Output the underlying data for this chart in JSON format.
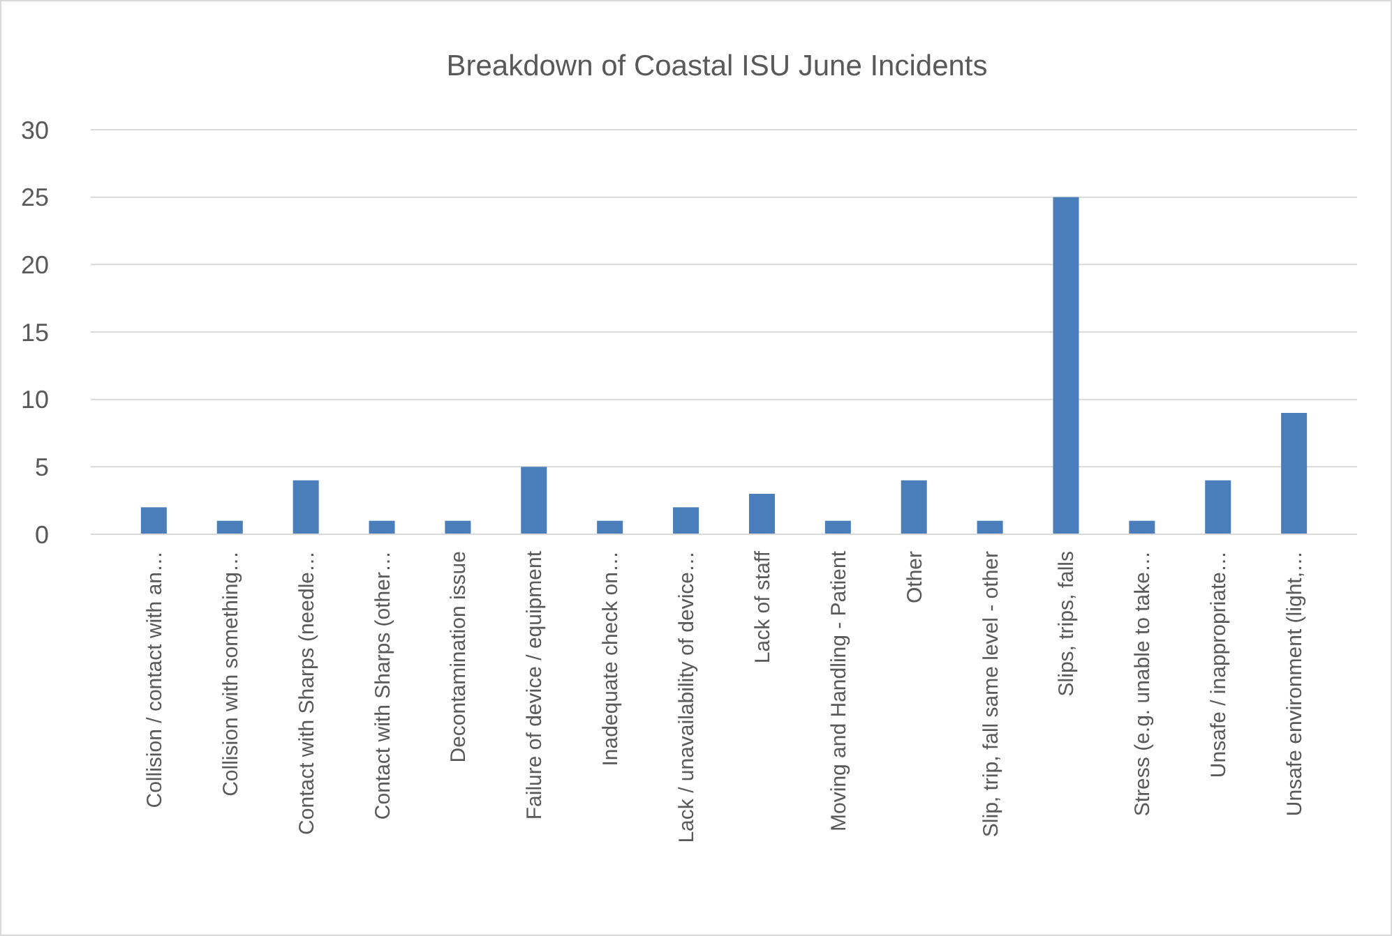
{
  "chart_data": {
    "type": "bar",
    "title": "Breakdown of Coastal ISU June Incidents",
    "categories": [
      "Collision / contact with an…",
      "Collision with something…",
      "Contact with Sharps (needle…",
      "Contact with Sharps (other…",
      "Decontamination issue",
      "Failure of device / equipment",
      "Inadequate check on…",
      "Lack / unavailability of device…",
      "Lack of staff",
      "Moving and Handling - Patient",
      "Other",
      "Slip, trip, fall same level - other",
      "Slips, trips, falls",
      "Stress (e.g. unable to take…",
      "Unsafe / inappropriate…",
      "Unsafe environment (light,…"
    ],
    "values": [
      2,
      1,
      4,
      1,
      1,
      5,
      1,
      2,
      3,
      1,
      4,
      1,
      25,
      1,
      4,
      9
    ],
    "color": "#4a7ebb",
    "ylim": [
      0,
      30
    ],
    "yticks": [
      0,
      5,
      10,
      15,
      20,
      25,
      30
    ],
    "grid": "y"
  }
}
